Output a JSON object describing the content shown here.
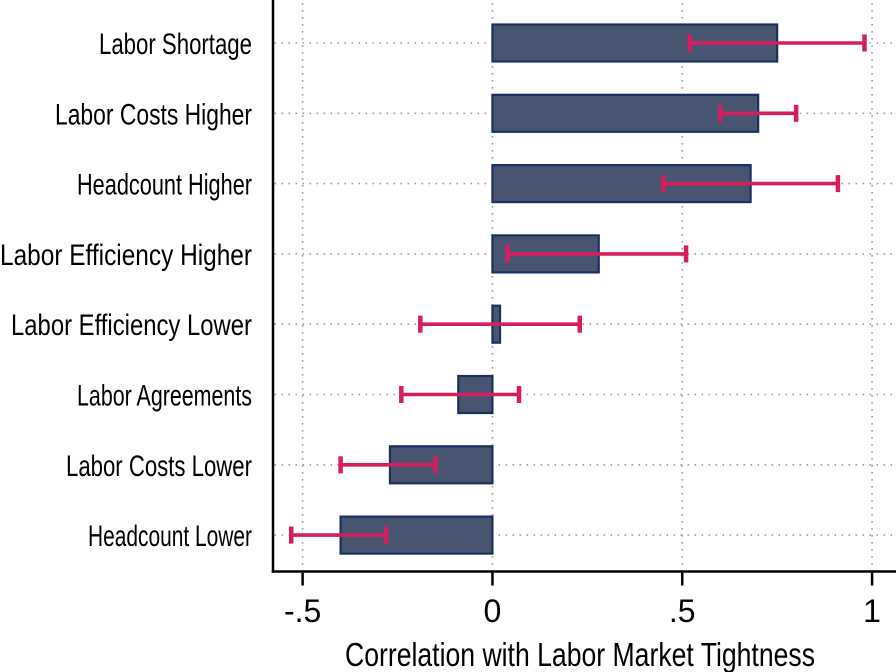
{
  "figure": {
    "background": "#ffffff",
    "description": "Horizontal bar chart with confidence-interval error bars, Stata style"
  },
  "chart_data": {
    "type": "bar",
    "orientation": "horizontal",
    "title": "",
    "xlabel": "Correlation with Labor Market Tightness",
    "ylabel": "",
    "categories": [
      "Labor Shortage",
      "Labor Costs Higher",
      "Headcount Higher",
      "Labor Efficiency Higher",
      "Labor Efficiency Lower",
      "Labor Agreements",
      "Labor Costs Lower",
      "Headcount Lower"
    ],
    "series": [
      {
        "name": "Correlation with Labor Market Tightness",
        "values": [
          0.75,
          0.7,
          0.68,
          0.28,
          0.02,
          -0.09,
          -0.27,
          -0.4
        ],
        "ci_low": [
          0.52,
          0.6,
          0.45,
          0.04,
          -0.19,
          -0.24,
          -0.4,
          -0.53
        ],
        "ci_high": [
          0.98,
          0.8,
          0.91,
          0.51,
          0.23,
          0.07,
          -0.15,
          -0.28
        ]
      }
    ],
    "xticks": [
      -0.5,
      0,
      0.5,
      1
    ],
    "xtick_labels": [
      "-.5",
      "0",
      ".5",
      "1"
    ],
    "xlim": [
      -0.578,
      1.063
    ],
    "grid": "dotted, both vertical (at x ticks) and horizontal (at category centers)",
    "legend": "none",
    "colors": {
      "bar_fill": "#475571",
      "bar_border": "#1c2f5e",
      "error_bar": "#d61e5c",
      "grid": "#9c9c9c",
      "axis": "#000000",
      "text": "#000000",
      "background": "#ffffff"
    }
  }
}
